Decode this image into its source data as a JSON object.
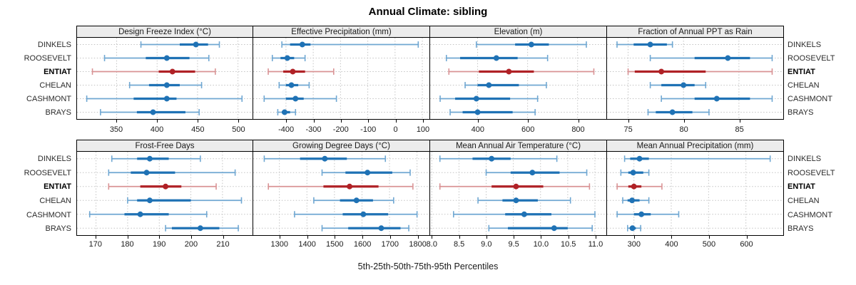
{
  "title": "Annual Climate: sibling",
  "xlabel": "5th-25th-50th-75th-95th Percentiles",
  "sites": [
    "DINKELS",
    "ROOSEVELT",
    "ENTIAT",
    "CHELAN",
    "CASHMONT",
    "BRAYS"
  ],
  "highlight_site": "ENTIAT",
  "percentile_labels": [
    "5th",
    "25th",
    "50th",
    "75th",
    "95th"
  ],
  "colors": {
    "series_blue": "#1f72b5",
    "series_blue_light": "#6fa7d2",
    "highlight_red": "#b02126",
    "highlight_red_light": "#d99395",
    "strip_bg": "#ececec",
    "panel_border": "#000000",
    "grid": "#c3c3c3",
    "text": "#1a1a1a"
  },
  "chart_data": [
    {
      "type": "dot-interval",
      "grid_row": 0,
      "grid_col": 0,
      "title": "Design Freeze Index (°C)",
      "xlim": [
        301,
        518
      ],
      "tick_values": [
        350,
        400,
        450,
        500
      ],
      "tick_labels": [
        "350",
        "400",
        "450",
        "500"
      ],
      "series": [
        {
          "name": "DINKELS",
          "p5": 380,
          "p25": 428,
          "p50": 448,
          "p75": 463,
          "p95": 477
        },
        {
          "name": "ROOSEVELT",
          "p5": 335,
          "p25": 386,
          "p50": 412,
          "p75": 440,
          "p95": 464
        },
        {
          "name": "ENTIAT",
          "p5": 320,
          "p25": 402,
          "p50": 419,
          "p75": 447,
          "p95": 472
        },
        {
          "name": "CHELAN",
          "p5": 366,
          "p25": 390,
          "p50": 412,
          "p75": 428,
          "p95": 455
        },
        {
          "name": "CASHMONT",
          "p5": 313,
          "p25": 371,
          "p50": 412,
          "p75": 424,
          "p95": 505
        },
        {
          "name": "BRAYS",
          "p5": 330,
          "p25": 375,
          "p50": 395,
          "p75": 435,
          "p95": 452
        }
      ]
    },
    {
      "type": "dot-interval",
      "grid_row": 0,
      "grid_col": 1,
      "title": "Effective Precipitation (mm)",
      "xlim": [
        -520,
        126
      ],
      "tick_values": [
        -400,
        -300,
        -200,
        -100,
        0,
        100
      ],
      "tick_labels": [
        "-400",
        "-300",
        "-200",
        "-100",
        "0",
        "100"
      ],
      "series": [
        {
          "name": "DINKELS",
          "p5": -415,
          "p25": -385,
          "p50": -340,
          "p75": -310,
          "p95": 85
        },
        {
          "name": "ROOSEVELT",
          "p5": -450,
          "p25": -420,
          "p50": -395,
          "p75": -370,
          "p95": -330
        },
        {
          "name": "ENTIAT",
          "p5": -465,
          "p25": -410,
          "p50": -375,
          "p75": -330,
          "p95": -225
        },
        {
          "name": "CHELAN",
          "p5": -425,
          "p25": -400,
          "p50": -380,
          "p75": -355,
          "p95": -315
        },
        {
          "name": "CASHMONT",
          "p5": -480,
          "p25": -400,
          "p50": -365,
          "p75": -335,
          "p95": -215
        },
        {
          "name": "BRAYS",
          "p5": -430,
          "p25": -415,
          "p50": -405,
          "p75": -385,
          "p95": -365
        }
      ]
    },
    {
      "type": "dot-interval",
      "grid_row": 0,
      "grid_col": 2,
      "title": "Elevation (m)",
      "xlim": [
        210,
        915
      ],
      "tick_values": [
        400,
        600,
        800
      ],
      "tick_labels": [
        "400",
        "600",
        "800"
      ],
      "series": [
        {
          "name": "DINKELS",
          "p5": 395,
          "p25": 550,
          "p50": 615,
          "p75": 685,
          "p95": 835
        },
        {
          "name": "ROOSEVELT",
          "p5": 275,
          "p25": 330,
          "p50": 475,
          "p75": 560,
          "p95": 680
        },
        {
          "name": "ENTIAT",
          "p5": 285,
          "p25": 405,
          "p50": 525,
          "p75": 625,
          "p95": 865
        },
        {
          "name": "CHELAN",
          "p5": 350,
          "p25": 400,
          "p50": 445,
          "p75": 565,
          "p95": 675
        },
        {
          "name": "CASHMONT",
          "p5": 250,
          "p25": 310,
          "p50": 395,
          "p75": 530,
          "p95": 640
        },
        {
          "name": "BRAYS",
          "p5": 290,
          "p25": 340,
          "p50": 400,
          "p75": 540,
          "p95": 630
        }
      ]
    },
    {
      "type": "dot-interval",
      "grid_row": 0,
      "grid_col": 3,
      "title": "Fraction of Annual PPT as Rain",
      "xlim": [
        73.1,
        89
      ],
      "tick_values": [
        75,
        80,
        85
      ],
      "tick_labels": [
        "75",
        "80",
        "85"
      ],
      "series": [
        {
          "name": "DINKELS",
          "p5": 74,
          "p25": 75.5,
          "p50": 77,
          "p75": 78.5,
          "p95": 79
        },
        {
          "name": "ROOSEVELT",
          "p5": 77,
          "p25": 81,
          "p50": 84,
          "p75": 86,
          "p95": 88
        },
        {
          "name": "ENTIAT",
          "p5": 75,
          "p25": 75.6,
          "p50": 78,
          "p75": 82,
          "p95": 88
        },
        {
          "name": "CHELAN",
          "p5": 77,
          "p25": 78,
          "p50": 80,
          "p75": 81,
          "p95": 82
        },
        {
          "name": "CASHMONT",
          "p5": 78,
          "p25": 81,
          "p50": 83,
          "p75": 86,
          "p95": 88
        },
        {
          "name": "BRAYS",
          "p5": 76.8,
          "p25": 77.5,
          "p50": 79,
          "p75": 80.8,
          "p95": 82.3
        }
      ]
    },
    {
      "type": "dot-interval",
      "grid_row": 1,
      "grid_col": 0,
      "title": "Frost-Free Days",
      "xlim": [
        164,
        219.5
      ],
      "tick_values": [
        170,
        180,
        190,
        200,
        210
      ],
      "tick_labels": [
        "170",
        "180",
        "190",
        "200",
        "210"
      ],
      "series": [
        {
          "name": "DINKELS",
          "p5": 175,
          "p25": 183,
          "p50": 187,
          "p75": 193,
          "p95": 203
        },
        {
          "name": "ROOSEVELT",
          "p5": 174,
          "p25": 181,
          "p50": 186,
          "p75": 195,
          "p95": 214
        },
        {
          "name": "ENTIAT",
          "p5": 174,
          "p25": 184,
          "p50": 192,
          "p75": 197,
          "p95": 208
        },
        {
          "name": "CHELAN",
          "p5": 180,
          "p25": 183,
          "p50": 187,
          "p75": 200,
          "p95": 216
        },
        {
          "name": "CASHMONT",
          "p5": 168,
          "p25": 179,
          "p50": 184,
          "p75": 193,
          "p95": 205
        },
        {
          "name": "BRAYS",
          "p5": 192,
          "p25": 194,
          "p50": 203,
          "p75": 209,
          "p95": 215
        }
      ]
    },
    {
      "type": "dot-interval",
      "grid_row": 1,
      "grid_col": 1,
      "title": "Growing Degree Days (°C)",
      "xlim": [
        1205,
        1845
      ],
      "tick_values": [
        1300,
        1400,
        1500,
        1600,
        1700,
        1800
      ],
      "tick_labels": [
        "1300",
        "1400",
        "1500",
        "1600",
        "1700",
        "1800"
      ],
      "series": [
        {
          "name": "DINKELS",
          "p5": 1245,
          "p25": 1375,
          "p50": 1465,
          "p75": 1545,
          "p95": 1685
        },
        {
          "name": "ROOSEVELT",
          "p5": 1455,
          "p25": 1540,
          "p50": 1620,
          "p75": 1710,
          "p95": 1775
        },
        {
          "name": "ENTIAT",
          "p5": 1260,
          "p25": 1460,
          "p50": 1555,
          "p75": 1660,
          "p95": 1785
        },
        {
          "name": "CHELAN",
          "p5": 1425,
          "p25": 1520,
          "p50": 1580,
          "p75": 1640,
          "p95": 1715
        },
        {
          "name": "CASHMONT",
          "p5": 1355,
          "p25": 1530,
          "p50": 1605,
          "p75": 1695,
          "p95": 1800
        },
        {
          "name": "BRAYS",
          "p5": 1455,
          "p25": 1550,
          "p50": 1670,
          "p75": 1740,
          "p95": 1770
        }
      ]
    },
    {
      "type": "dot-interval",
      "grid_row": 1,
      "grid_col": 2,
      "title": "Mean Annual Air Temperature (°C)",
      "xlim": [
        7.97,
        11.21
      ],
      "tick_values": [
        8,
        8.5,
        9,
        9.5,
        10,
        10.5,
        11
      ],
      "tick_labels": [
        "8.0",
        "8.5",
        "9.0",
        "9.5",
        "10.0",
        "10.5",
        "11.0"
      ],
      "series": [
        {
          "name": "DINKELS",
          "p5": 8.15,
          "p25": 8.75,
          "p50": 9.1,
          "p75": 9.45,
          "p95": 10.3
        },
        {
          "name": "ROOSEVELT",
          "p5": 9.0,
          "p25": 9.45,
          "p50": 9.85,
          "p75": 10.35,
          "p95": 10.85
        },
        {
          "name": "ENTIAT",
          "p5": 8.15,
          "p25": 9.1,
          "p50": 9.55,
          "p75": 10.05,
          "p95": 10.9
        },
        {
          "name": "CHELAN",
          "p5": 8.85,
          "p25": 9.3,
          "p50": 9.55,
          "p75": 9.95,
          "p95": 10.55
        },
        {
          "name": "CASHMONT",
          "p5": 8.4,
          "p25": 9.35,
          "p50": 9.7,
          "p75": 10.2,
          "p95": 11.0
        },
        {
          "name": "BRAYS",
          "p5": 9.05,
          "p25": 9.4,
          "p50": 10.25,
          "p75": 10.5,
          "p95": 10.95
        }
      ]
    },
    {
      "type": "dot-interval",
      "grid_row": 1,
      "grid_col": 3,
      "title": "Mean Annual Precipitation (mm)",
      "xlim": [
        228,
        700
      ],
      "tick_values": [
        300,
        400,
        500,
        600
      ],
      "tick_labels": [
        "300",
        "400",
        "500",
        "600"
      ],
      "series": [
        {
          "name": "DINKELS",
          "p5": 275,
          "p25": 290,
          "p50": 315,
          "p75": 340,
          "p95": 665
        },
        {
          "name": "ROOSEVELT",
          "p5": 265,
          "p25": 285,
          "p50": 298,
          "p75": 325,
          "p95": 340
        },
        {
          "name": "ENTIAT",
          "p5": 255,
          "p25": 285,
          "p50": 300,
          "p75": 320,
          "p95": 375
        },
        {
          "name": "CHELAN",
          "p5": 270,
          "p25": 283,
          "p50": 295,
          "p75": 315,
          "p95": 340
        },
        {
          "name": "CASHMONT",
          "p5": 255,
          "p25": 300,
          "p50": 320,
          "p75": 345,
          "p95": 420
        },
        {
          "name": "BRAYS",
          "p5": 283,
          "p25": 290,
          "p50": 296,
          "p75": 305,
          "p95": 318
        }
      ]
    }
  ]
}
